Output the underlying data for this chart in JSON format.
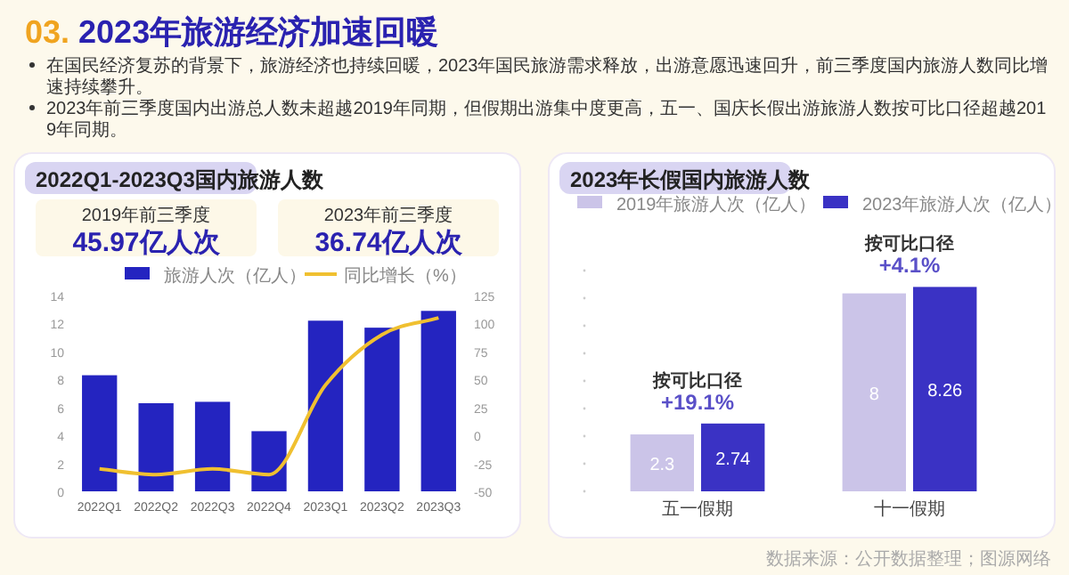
{
  "chart_data": [
    {
      "type": "other",
      "title": "03. 2023年旅游经济加速回暖",
      "annotations": [
        "在国民经济复苏的背景下，旅游经济也持续回暖，2023年国民旅游需求释放，出游意愿迅速回升，前三季度国内旅游人数同比增速持续攀升。",
        "2023年前三季度国内出游总人数未超越2019年同期，但假期出游集中度更高，五一、国庆长假出游旅游人数按可比口径超越2019年同期。",
        "数据来源：公开数据整理；图源网络"
      ]
    },
    {
      "type": "bar",
      "title": "2022Q1-2023Q3国内旅游人数",
      "annotations": [
        "2019年前三季度",
        "45.97亿人次",
        "2023年前三季度",
        "36.74亿人次"
      ],
      "categories": [
        "2022Q1",
        "2022Q2",
        "2022Q3",
        "2022Q4",
        "2023Q1",
        "2023Q2",
        "2023Q3"
      ],
      "series": [
        {
          "name": "旅游人次（亿人）",
          "type": "bar",
          "color": "#2424c0",
          "values": [
            8.3,
            6.3,
            6.4,
            4.3,
            12.2,
            11.7,
            12.9
          ]
        },
        {
          "name": "同比增长（%）",
          "type": "line",
          "axis": "y2",
          "color": "#f0c030",
          "values": [
            -30,
            -35,
            -30,
            -35,
            45,
            90,
            105
          ]
        }
      ],
      "ylim": [
        0,
        14
      ],
      "yticks": [
        0,
        2,
        4,
        6,
        8,
        10,
        12,
        14
      ],
      "y2lim": [
        -50,
        125
      ],
      "y2ticks": [
        -50,
        -25,
        0,
        25,
        50,
        75,
        100,
        125
      ],
      "legend": "top"
    },
    {
      "type": "bar",
      "title": "2023年长假国内旅游人数",
      "categories": [
        "五一假期",
        "十一假期"
      ],
      "series": [
        {
          "name": "2019年旅游人次（亿人）",
          "color": "#cbc4e8",
          "values": [
            2.3,
            8
          ]
        },
        {
          "name": "2023年旅游人次（亿人）",
          "color": "#3a32c4",
          "values": [
            2.74,
            8.26
          ]
        }
      ],
      "data_labels": true,
      "legend": "top",
      "tick_labels": "x",
      "annotations": [
        {
          "text": "按可比口径\n+19.1%",
          "x": "五一假期",
          "y": 2.74
        },
        {
          "text": "按可比口径\n+4.1%",
          "x": "十一假期",
          "y": 8.26
        }
      ]
    }
  ]
}
